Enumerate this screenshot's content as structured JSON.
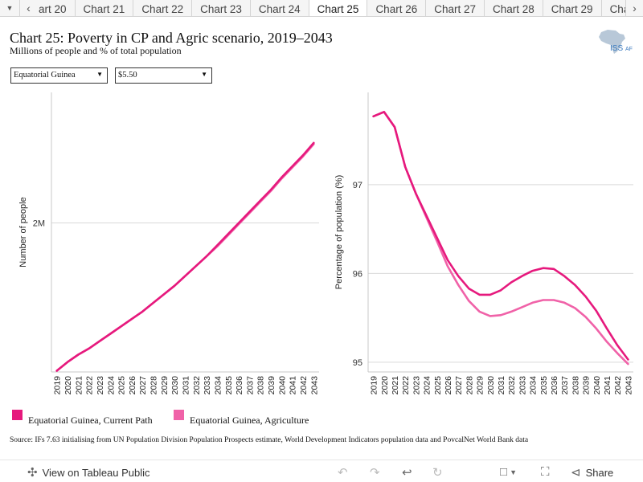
{
  "tabs": {
    "items": [
      "art 20",
      "Chart 21",
      "Chart 22",
      "Chart 23",
      "Chart 24",
      "Chart 25",
      "Chart 26",
      "Chart 27",
      "Chart 28",
      "Chart 29",
      "Chart"
    ],
    "active_index": 5
  },
  "header": {
    "title": "Chart 25: Poverty in CP and Agric scenario, 2019–2043",
    "subtitle": "Millions of people and % of total population",
    "logo_text": "ISS"
  },
  "filters": {
    "country": "Equatorial Guinea",
    "threshold": "$5.50"
  },
  "chart_data": [
    {
      "type": "line",
      "ylabel": "Number of people",
      "x": [
        2019,
        2020,
        2021,
        2022,
        2023,
        2024,
        2025,
        2026,
        2027,
        2028,
        2029,
        2030,
        2031,
        2032,
        2033,
        2034,
        2035,
        2036,
        2037,
        2038,
        2039,
        2040,
        2041,
        2042,
        2043
      ],
      "ylim": [
        0.79,
        3.06
      ],
      "yticks": [
        {
          "value": 2.0,
          "label": "2M"
        }
      ],
      "grid": true,
      "series": [
        {
          "name": "Equatorial Guinea, Current Path",
          "color": "#e6197d",
          "values": [
            0.8,
            0.87,
            0.93,
            0.98,
            1.04,
            1.1,
            1.16,
            1.22,
            1.28,
            1.35,
            1.42,
            1.49,
            1.57,
            1.65,
            1.73,
            1.82,
            1.91,
            2.0,
            2.09,
            2.18,
            2.27,
            2.37,
            2.46,
            2.55,
            2.65
          ]
        },
        {
          "name": "Equatorial Guinea, Agriculture",
          "color": "#f062a8",
          "values": [
            0.8,
            0.87,
            0.93,
            0.98,
            1.04,
            1.1,
            1.16,
            1.22,
            1.28,
            1.35,
            1.42,
            1.49,
            1.57,
            1.65,
            1.73,
            1.81,
            1.9,
            1.99,
            2.08,
            2.17,
            2.26,
            2.36,
            2.45,
            2.54,
            2.64
          ]
        }
      ]
    },
    {
      "type": "line",
      "ylabel": "Percentage of population (%)",
      "x": [
        2019,
        2020,
        2021,
        2022,
        2023,
        2024,
        2025,
        2026,
        2027,
        2028,
        2029,
        2030,
        2031,
        2032,
        2033,
        2034,
        2035,
        2036,
        2037,
        2038,
        2039,
        2040,
        2041,
        2042,
        2043
      ],
      "ylim": [
        94.89,
        98.04
      ],
      "yticks": [
        {
          "value": 95,
          "label": "95"
        },
        {
          "value": 96,
          "label": "96"
        },
        {
          "value": 97,
          "label": "97"
        }
      ],
      "grid": true,
      "series": [
        {
          "name": "Equatorial Guinea, Current Path",
          "color": "#e6197d",
          "values": [
            97.77,
            97.82,
            97.65,
            97.2,
            96.9,
            96.65,
            96.4,
            96.15,
            95.97,
            95.83,
            95.76,
            95.76,
            95.81,
            95.9,
            95.97,
            96.03,
            96.06,
            96.05,
            95.97,
            95.87,
            95.74,
            95.58,
            95.38,
            95.19,
            95.03
          ]
        },
        {
          "name": "Equatorial Guinea, Agriculture",
          "color": "#f062a8",
          "values": [
            97.77,
            97.82,
            97.65,
            97.2,
            96.9,
            96.63,
            96.36,
            96.08,
            95.87,
            95.69,
            95.57,
            95.52,
            95.53,
            95.57,
            95.62,
            95.67,
            95.7,
            95.7,
            95.67,
            95.61,
            95.51,
            95.38,
            95.23,
            95.1,
            94.98
          ]
        }
      ]
    }
  ],
  "legend": [
    {
      "label": "Equatorial Guinea, Current Path",
      "color": "#e6197d"
    },
    {
      "label": "Equatorial Guinea, Agriculture",
      "color": "#f062a8"
    }
  ],
  "source": "Source: IFs 7.63 initialising from UN Population Division Population Prospects estimate, World Development Indicators population data and PovcalNet World Bank data",
  "footer": {
    "view_label": "View on Tableau Public",
    "share_label": "Share"
  }
}
